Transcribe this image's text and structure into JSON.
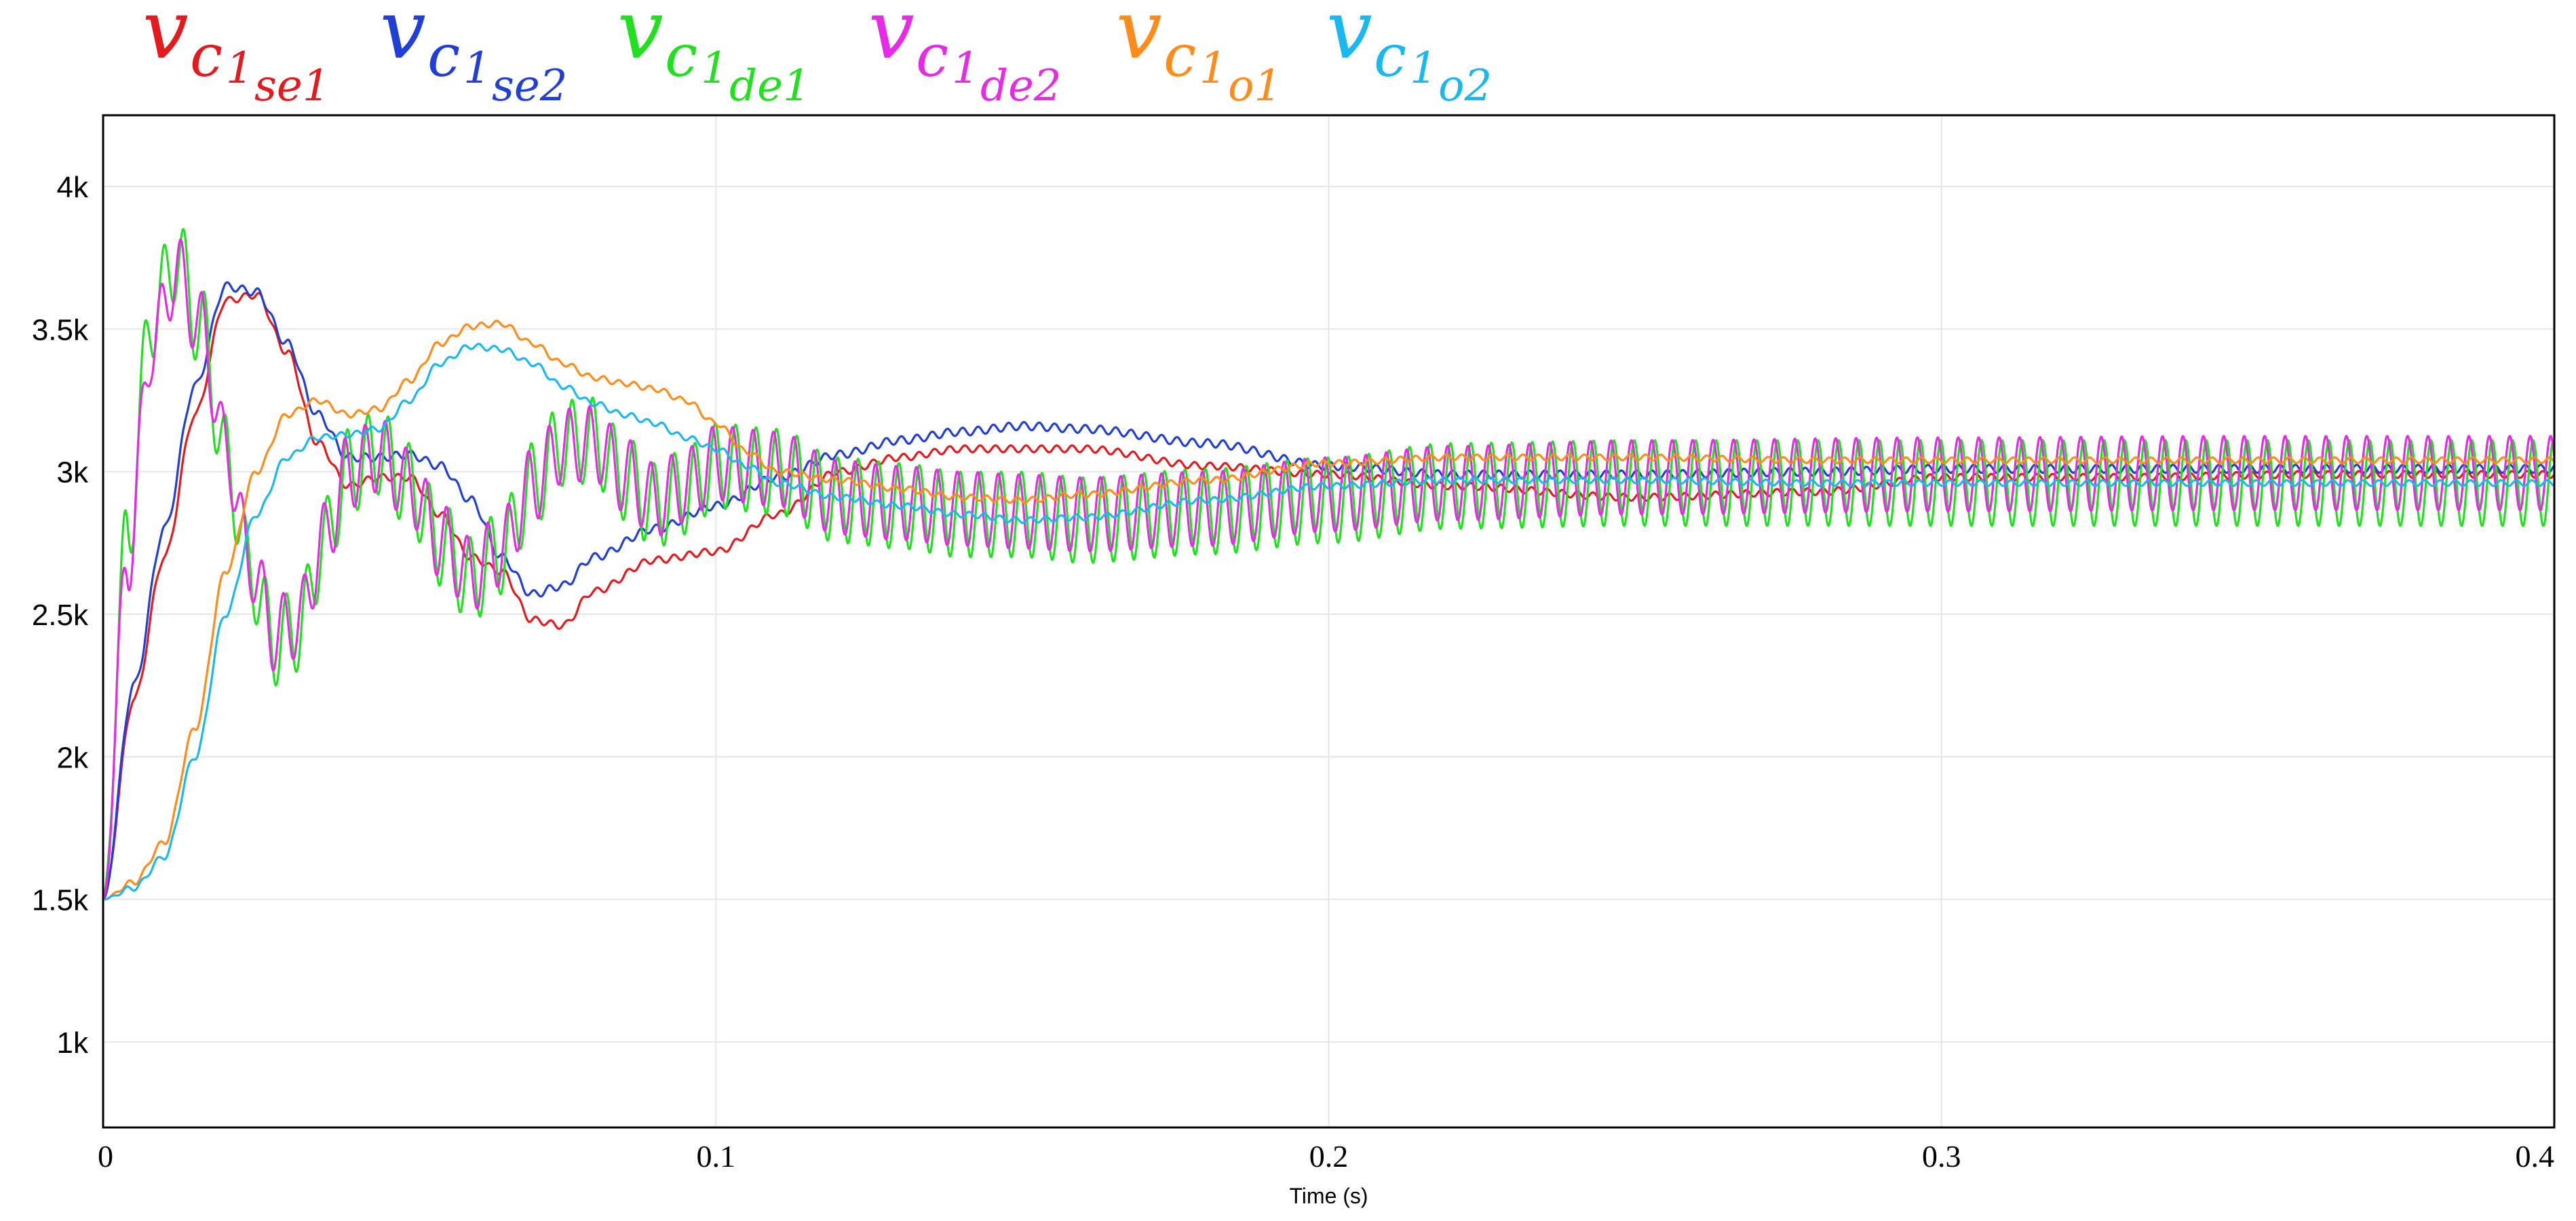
{
  "chart_data": {
    "type": "line",
    "xlabel": "Time (s)",
    "ylabel": "",
    "xlim": [
      0,
      0.4
    ],
    "ylim": [
      700,
      4250
    ],
    "x_ticks": [
      {
        "value": 0,
        "label": "0"
      },
      {
        "value": 0.1,
        "label": "0.1"
      },
      {
        "value": 0.2,
        "label": "0.2"
      },
      {
        "value": 0.3,
        "label": "0.3"
      },
      {
        "value": 0.4,
        "label": "0.4"
      }
    ],
    "y_ticks": [
      {
        "value": 1000,
        "label": "1k"
      },
      {
        "value": 1500,
        "label": "1.5k"
      },
      {
        "value": 2000,
        "label": "2k"
      },
      {
        "value": 2500,
        "label": "2.5k"
      },
      {
        "value": 3000,
        "label": "3k"
      },
      {
        "value": 3500,
        "label": "3.5k"
      },
      {
        "value": 4000,
        "label": "4k"
      }
    ],
    "grid": true,
    "legend_position": "top-left",
    "series": [
      {
        "name": "v_c1se1",
        "legend": {
          "main": "v",
          "sub": "c",
          "subsub": "1",
          "tail": "se1"
        },
        "color": "#e41a1c",
        "ripple": {
          "amp": 12,
          "freq": 400
        },
        "x": [
          0,
          0.005,
          0.01,
          0.015,
          0.02,
          0.025,
          0.03,
          0.035,
          0.04,
          0.045,
          0.05,
          0.055,
          0.06,
          0.065,
          0.07,
          0.075,
          0.08,
          0.09,
          0.1,
          0.11,
          0.12,
          0.13,
          0.14,
          0.15,
          0.16,
          0.18,
          0.2,
          0.22,
          0.25,
          0.28,
          0.3,
          0.33,
          0.36,
          0.4
        ],
        "y": [
          1500,
          2200,
          2700,
          3200,
          3600,
          3620,
          3420,
          3100,
          2950,
          2980,
          2980,
          2850,
          2700,
          2650,
          2480,
          2460,
          2580,
          2690,
          2720,
          2850,
          3000,
          3050,
          3080,
          3080,
          3080,
          3020,
          2990,
          2950,
          2910,
          2930,
          2980,
          2980,
          2990,
          2990
        ]
      },
      {
        "name": "v_c1se2",
        "legend": {
          "main": "v",
          "sub": "c",
          "subsub": "1",
          "tail": "se2"
        },
        "color": "#1f3fd8",
        "ripple": {
          "amp": 14,
          "freq": 400
        },
        "x": [
          0,
          0.005,
          0.01,
          0.015,
          0.02,
          0.025,
          0.03,
          0.035,
          0.04,
          0.045,
          0.05,
          0.055,
          0.06,
          0.065,
          0.07,
          0.075,
          0.08,
          0.09,
          0.1,
          0.11,
          0.12,
          0.13,
          0.14,
          0.15,
          0.16,
          0.18,
          0.2,
          0.22,
          0.25,
          0.28,
          0.3,
          0.33,
          0.36,
          0.4
        ],
        "y": [
          1500,
          2250,
          2800,
          3300,
          3650,
          3630,
          3450,
          3200,
          3050,
          3050,
          3060,
          3020,
          2900,
          2700,
          2570,
          2600,
          2700,
          2800,
          2880,
          2980,
          3060,
          3110,
          3140,
          3160,
          3150,
          3100,
          3020,
          2990,
          2990,
          3000,
          3010,
          3010,
          3010,
          3010
        ]
      },
      {
        "name": "v_c1de1",
        "legend": {
          "main": "v",
          "sub": "c",
          "subsub": "1",
          "tail": "de1"
        },
        "color": "#22e01f",
        "ripple": {
          "amp": 150,
          "freq": 300
        },
        "x": [
          0,
          0.004,
          0.008,
          0.012,
          0.016,
          0.02,
          0.024,
          0.028,
          0.032,
          0.036,
          0.04,
          0.045,
          0.05,
          0.055,
          0.06,
          0.065,
          0.07,
          0.075,
          0.08,
          0.085,
          0.09,
          0.095,
          0.1,
          0.11,
          0.12,
          0.13,
          0.14,
          0.15,
          0.16,
          0.18,
          0.2,
          0.22,
          0.25,
          0.3,
          0.35,
          0.4
        ],
        "y": [
          1500,
          2800,
          3550,
          3750,
          3500,
          3050,
          2650,
          2400,
          2450,
          2750,
          3000,
          3070,
          2950,
          2750,
          2620,
          2720,
          2950,
          3100,
          3110,
          2980,
          2880,
          2930,
          3020,
          3000,
          2900,
          2880,
          2850,
          2850,
          2830,
          2860,
          2900,
          2950,
          2960,
          2960,
          2960,
          2960
        ]
      },
      {
        "name": "v_c1de2",
        "legend": {
          "main": "v",
          "sub": "c",
          "subsub": "1",
          "tail": "de2"
        },
        "color": "#e52be6",
        "ripple": {
          "amp": 130,
          "freq": 300
        },
        "x": [
          0,
          0.004,
          0.008,
          0.012,
          0.016,
          0.02,
          0.024,
          0.028,
          0.032,
          0.036,
          0.04,
          0.045,
          0.05,
          0.055,
          0.06,
          0.065,
          0.07,
          0.075,
          0.08,
          0.085,
          0.09,
          0.095,
          0.1,
          0.11,
          0.12,
          0.13,
          0.14,
          0.15,
          0.16,
          0.18,
          0.2,
          0.22,
          0.25,
          0.3,
          0.35,
          0.4
        ],
        "y": [
          1500,
          2700,
          3450,
          3700,
          3500,
          3080,
          2680,
          2430,
          2480,
          2760,
          3000,
          3060,
          2950,
          2760,
          2640,
          2730,
          2950,
          3090,
          3100,
          2990,
          2900,
          2950,
          3030,
          3010,
          2910,
          2890,
          2870,
          2860,
          2850,
          2870,
          2920,
          2960,
          2980,
          2990,
          2995,
          2995
        ]
      },
      {
        "name": "v_c1o1",
        "legend": {
          "main": "v",
          "sub": "c",
          "subsub": "1",
          "tail": "o1"
        },
        "color": "#ff8c1a",
        "ripple": {
          "amp": 10,
          "freq": 400
        },
        "x": [
          0,
          0.005,
          0.01,
          0.015,
          0.02,
          0.025,
          0.03,
          0.035,
          0.04,
          0.045,
          0.05,
          0.055,
          0.06,
          0.065,
          0.07,
          0.075,
          0.08,
          0.085,
          0.09,
          0.095,
          0.1,
          0.105,
          0.11,
          0.12,
          0.13,
          0.14,
          0.15,
          0.16,
          0.18,
          0.2,
          0.22,
          0.25,
          0.28,
          0.3,
          0.35,
          0.4
        ],
        "y": [
          1500,
          1560,
          1700,
          2100,
          2650,
          3000,
          3200,
          3250,
          3200,
          3220,
          3320,
          3450,
          3510,
          3520,
          3450,
          3380,
          3330,
          3310,
          3290,
          3250,
          3170,
          3070,
          3000,
          2970,
          2940,
          2910,
          2900,
          2920,
          2970,
          3030,
          3050,
          3050,
          3040,
          3040,
          3040,
          3040
        ]
      },
      {
        "name": "v_c1o2",
        "legend": {
          "main": "v",
          "sub": "c",
          "subsub": "1",
          "tail": "o2"
        },
        "color": "#1ab8ef",
        "ripple": {
          "amp": 10,
          "freq": 400
        },
        "x": [
          0,
          0.005,
          0.01,
          0.015,
          0.02,
          0.025,
          0.03,
          0.035,
          0.04,
          0.045,
          0.05,
          0.055,
          0.06,
          0.065,
          0.07,
          0.075,
          0.08,
          0.085,
          0.09,
          0.095,
          0.1,
          0.105,
          0.11,
          0.12,
          0.13,
          0.14,
          0.15,
          0.16,
          0.18,
          0.2,
          0.22,
          0.25,
          0.28,
          0.3,
          0.35,
          0.4
        ],
        "y": [
          1500,
          1540,
          1650,
          2000,
          2500,
          2850,
          3050,
          3120,
          3130,
          3150,
          3250,
          3380,
          3440,
          3430,
          3380,
          3300,
          3240,
          3200,
          3170,
          3120,
          3080,
          3020,
          2960,
          2910,
          2880,
          2850,
          2830,
          2840,
          2900,
          2950,
          2970,
          2970,
          2960,
          2960,
          2960,
          2960
        ]
      }
    ]
  }
}
